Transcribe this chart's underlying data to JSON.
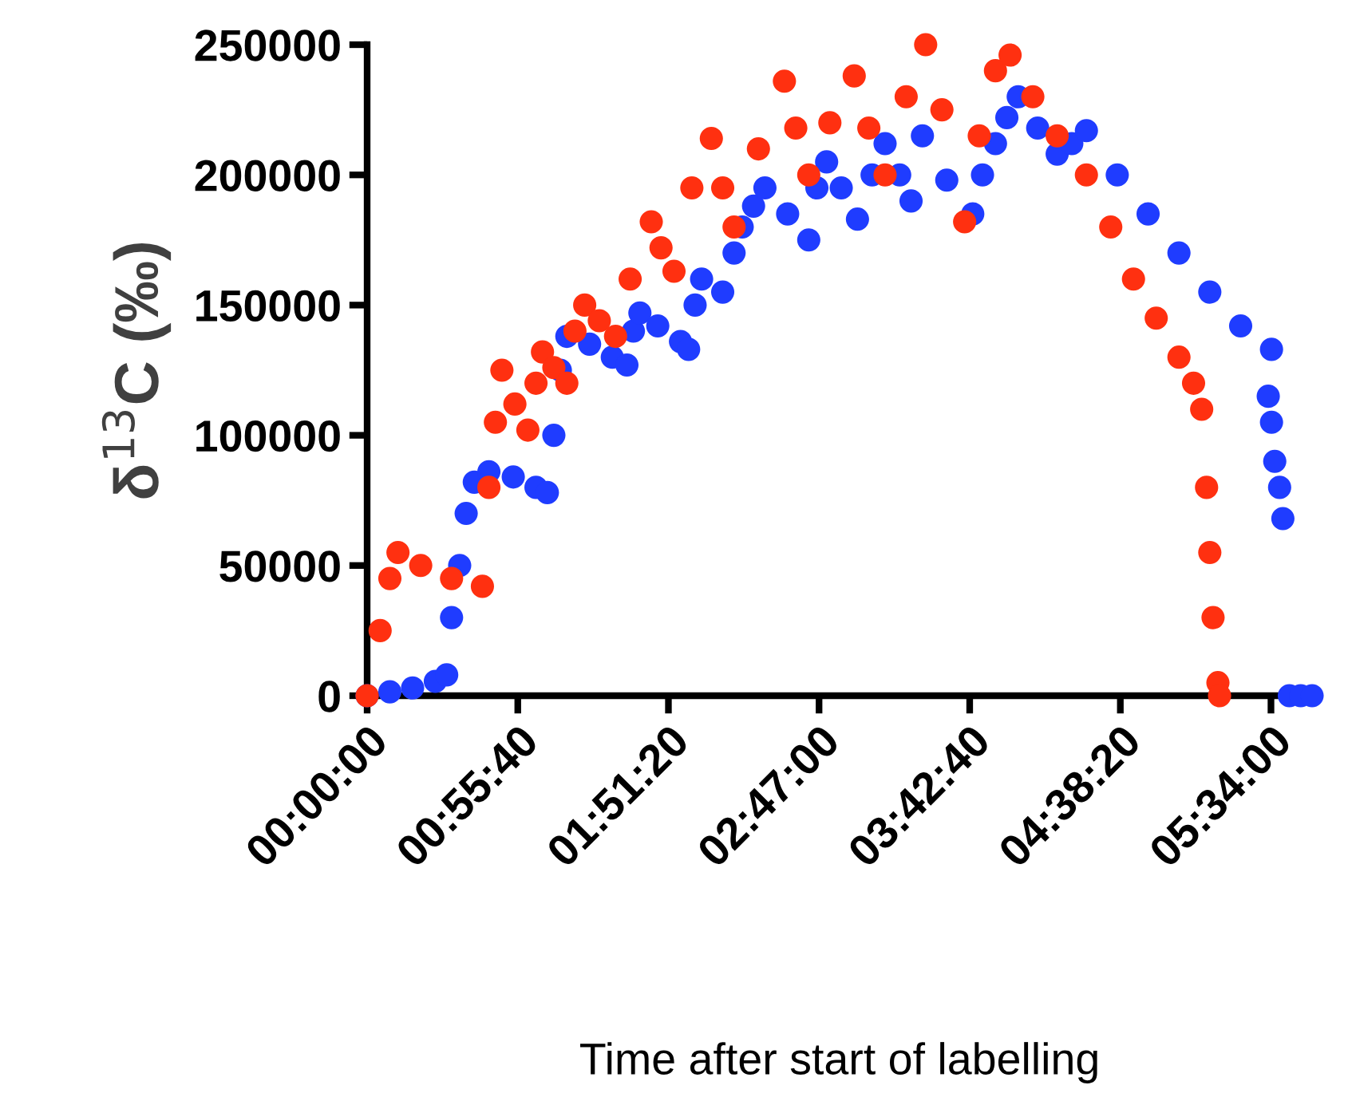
{
  "chart_data": {
    "type": "scatter",
    "ylabel": "δ$^{13}$C (‰)",
    "xlabel": "Time after start of labelling",
    "xlim": [
      0,
      5.82
    ],
    "ylim": [
      0,
      250000
    ],
    "xticks": [
      {
        "value": 0,
        "label": "00:00:00"
      },
      {
        "value": 0.9278,
        "label": "00:55:40"
      },
      {
        "value": 1.8556,
        "label": "01:51:20"
      },
      {
        "value": 2.7833,
        "label": "02:47:00"
      },
      {
        "value": 3.7111,
        "label": "03:42:40"
      },
      {
        "value": 4.6389,
        "label": "04:38:20"
      },
      {
        "value": 5.5667,
        "label": "05:34:00"
      }
    ],
    "yticks": [
      0,
      50000,
      100000,
      150000,
      200000,
      250000
    ],
    "grid": false,
    "legend": false,
    "marker": "circle",
    "series": [
      {
        "color": "#1f3cff",
        "x": [
          0,
          0.14,
          0.28,
          0.42,
          0.49,
          0.52,
          0.57,
          0.61,
          0.66,
          0.75,
          0.9,
          1.04,
          1.11,
          1.15,
          1.19,
          1.23,
          1.37,
          1.51,
          1.6,
          1.64,
          1.68,
          1.79,
          1.93,
          1.98,
          2.02,
          2.06,
          2.19,
          2.26,
          2.31,
          2.38,
          2.45,
          2.59,
          2.72,
          2.77,
          2.83,
          2.92,
          3.02,
          3.11,
          3.19,
          3.28,
          3.35,
          3.42,
          3.57,
          3.73,
          3.79,
          3.87,
          3.94,
          4.01,
          4.13,
          4.25,
          4.34,
          4.43,
          4.62,
          4.81,
          5.0,
          5.19,
          5.38,
          5.57,
          5.55,
          5.57,
          5.59,
          5.62,
          5.64,
          5.68,
          5.75,
          5.82
        ],
        "values": [
          0,
          1500,
          3000,
          5500,
          8000,
          30000,
          50000,
          70000,
          82000,
          86000,
          84000,
          80000,
          78000,
          100000,
          125000,
          138000,
          135000,
          130000,
          127000,
          140000,
          147000,
          142000,
          136000,
          133000,
          150000,
          160000,
          155000,
          170000,
          180000,
          188000,
          195000,
          185000,
          175000,
          195000,
          205000,
          195000,
          183000,
          200000,
          212000,
          200000,
          190000,
          215000,
          198000,
          185000,
          200000,
          212000,
          222000,
          230000,
          218000,
          208000,
          212000,
          217000,
          200000,
          185000,
          170000,
          155000,
          142000,
          133000,
          115000,
          105000,
          90000,
          80000,
          68000,
          0,
          0,
          0
        ]
      },
      {
        "color": "#ff3010",
        "x": [
          0,
          0.08,
          0.14,
          0.19,
          0.33,
          0.52,
          0.71,
          0.75,
          0.79,
          0.83,
          0.91,
          0.99,
          1.04,
          1.08,
          1.15,
          1.23,
          1.28,
          1.34,
          1.43,
          1.53,
          1.62,
          1.75,
          1.81,
          1.89,
          2.0,
          2.12,
          2.19,
          2.26,
          2.41,
          2.57,
          2.64,
          2.72,
          2.85,
          3.0,
          3.09,
          3.19,
          3.32,
          3.44,
          3.54,
          3.68,
          3.77,
          3.87,
          3.96,
          4.1,
          4.25,
          4.43,
          4.58,
          4.72,
          4.86,
          5.0,
          5.09,
          5.14,
          5.17,
          5.19,
          5.21,
          5.24,
          5.25
        ],
        "values": [
          0,
          25000,
          45000,
          55000,
          50000,
          45000,
          42000,
          80000,
          105000,
          125000,
          112000,
          102000,
          120000,
          132000,
          126000,
          120000,
          140000,
          150000,
          144000,
          138000,
          160000,
          182000,
          172000,
          163000,
          195000,
          214000,
          195000,
          180000,
          210000,
          236000,
          218000,
          200000,
          220000,
          238000,
          218000,
          200000,
          230000,
          250000,
          225000,
          182000,
          215000,
          240000,
          246000,
          230000,
          215000,
          200000,
          180000,
          160000,
          145000,
          130000,
          120000,
          110000,
          80000,
          55000,
          30000,
          5000,
          0
        ]
      }
    ]
  }
}
